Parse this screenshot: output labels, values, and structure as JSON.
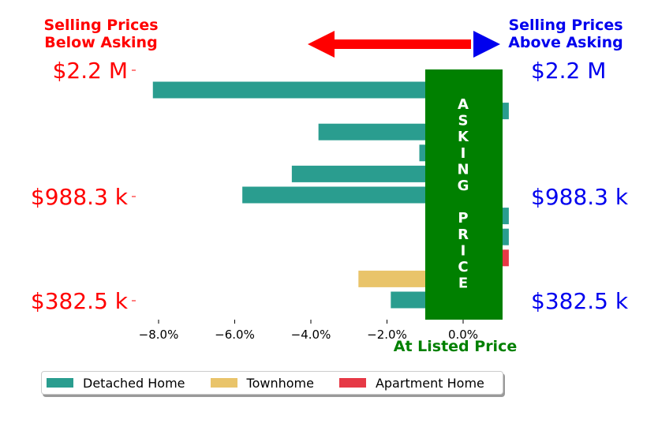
{
  "header": {
    "left_line1": "Selling Prices",
    "left_line2": "Below Asking",
    "right_line1": "Selling Prices",
    "right_line2": "Above Asking"
  },
  "center_band": {
    "letters": [
      "A",
      "S",
      "K",
      "I",
      "N",
      "G",
      "",
      "P",
      "R",
      "I",
      "C",
      "E"
    ],
    "bottom_label": "At Listed Price"
  },
  "colors": {
    "detached": "#2a9d8f",
    "townhome": "#e9c46a",
    "apartment": "#e63946",
    "band": "#008000",
    "left_text": "#ff0000",
    "right_text": "#0000ee",
    "arrow_left": "#ff0000",
    "arrow_right": "#0000ee"
  },
  "chart_data": {
    "type": "bar",
    "orientation": "horizontal",
    "x_ticks": [
      "−8.0%",
      "−6.0%",
      "−4.0%",
      "−2.0%",
      "0.0%"
    ],
    "x_tick_values": [
      -8,
      -6,
      -4,
      -2,
      0
    ],
    "xlim": [
      -8.8,
      1.2
    ],
    "left_price_labels": [
      "$2.2 M",
      "$988.3 k",
      "$382.5 k"
    ],
    "right_price_labels": [
      "$2.2 M",
      "$988.3 k",
      "$382.5 k"
    ],
    "price_label_rows": [
      0,
      5,
      10
    ],
    "bars": [
      {
        "value": -8.15,
        "category": "Detached Home"
      },
      {
        "value": 1.2,
        "category": "Detached Home"
      },
      {
        "value": -3.8,
        "category": "Detached Home"
      },
      {
        "value": -1.15,
        "category": "Detached Home"
      },
      {
        "value": -4.5,
        "category": "Detached Home"
      },
      {
        "value": -5.8,
        "category": "Detached Home"
      },
      {
        "value": 1.2,
        "category": "Detached Home"
      },
      {
        "value": 1.2,
        "category": "Detached Home"
      },
      {
        "value": 1.2,
        "category": "Apartment Home"
      },
      {
        "value": -2.75,
        "category": "Townhome"
      },
      {
        "value": -1.9,
        "category": "Detached Home"
      }
    ],
    "legend": [
      {
        "name": "Detached Home",
        "color_key": "detached"
      },
      {
        "name": "Townhome",
        "color_key": "townhome"
      },
      {
        "name": "Apartment Home",
        "color_key": "apartment"
      }
    ],
    "legend_position": "bottom-left"
  }
}
